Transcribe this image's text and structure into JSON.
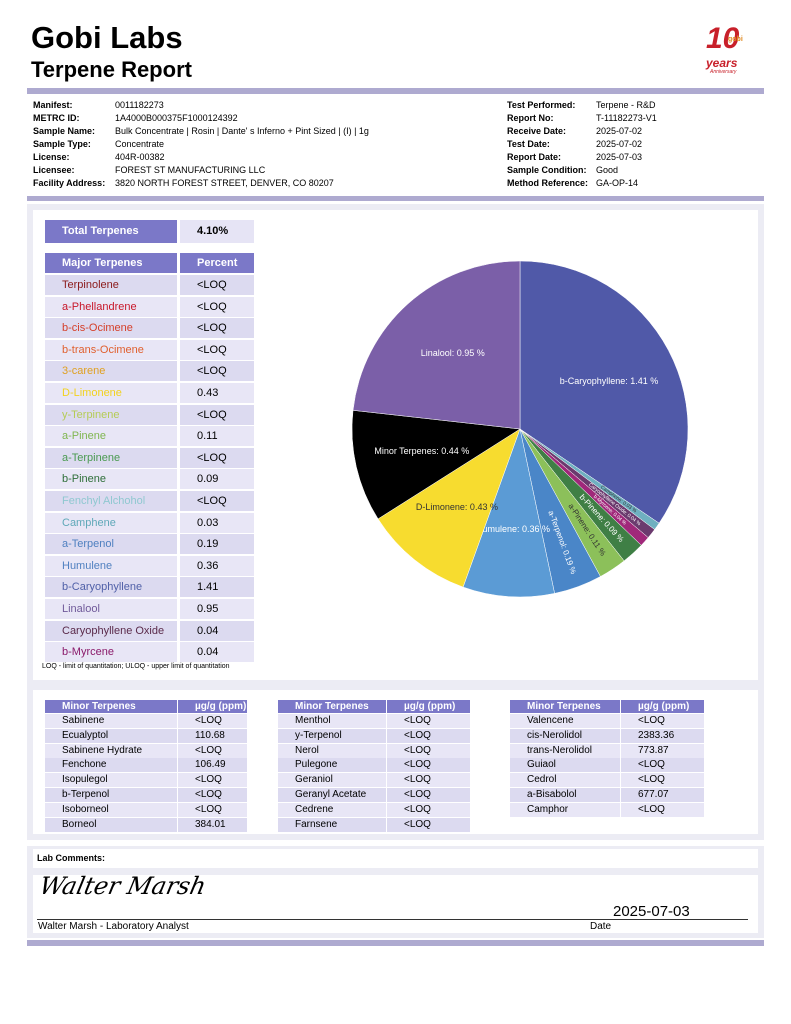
{
  "header": {
    "title": "Gobi Labs",
    "subtitle": "Terpene Report",
    "logo": {
      "number": "10",
      "brand": "gobi",
      "text": "years",
      "subtext": "Anniversary"
    }
  },
  "sample_info": {
    "left": [
      {
        "label": "Manifest:",
        "value": "0011182273"
      },
      {
        "label": "METRC ID:",
        "value": "1A4000B000375F1000124392"
      },
      {
        "label": "Sample Name:",
        "value": "Bulk Concentrate | Rosin | Dante' s Inferno + Pint Sized | (I) | 1g"
      },
      {
        "label": "Sample Type:",
        "value": "Concentrate"
      },
      {
        "label": "License:",
        "value": "404R-00382"
      },
      {
        "label": "Licensee:",
        "value": "FOREST ST MANUFACTURING LLC"
      },
      {
        "label": "Facility Address:",
        "value": "3820 NORTH FOREST STREET, DENVER, CO 80207"
      }
    ],
    "right": [
      {
        "label": "Test Performed:",
        "value": "Terpene - R&D"
      },
      {
        "label": "Report No:",
        "value": "T-11182273-V1"
      },
      {
        "label": "Receive Date:",
        "value": "2025-07-02"
      },
      {
        "label": "Test Date:",
        "value": "2025-07-02"
      },
      {
        "label": "Report Date:",
        "value": "2025-07-03"
      },
      {
        "label": "Sample Condition:",
        "value": "Good"
      },
      {
        "label": "Method Reference:",
        "value": "GA-OP-14"
      }
    ]
  },
  "total": {
    "label": "Total Terpenes",
    "value": "4.10%"
  },
  "major_terpenes": {
    "columns": [
      "Major Terpenes",
      "Percent"
    ],
    "rows": [
      {
        "name": "Terpinolene",
        "value": "<LOQ",
        "color": "#8b1a1a"
      },
      {
        "name": "a-Phellandrene",
        "value": "<LOQ",
        "color": "#c8172a"
      },
      {
        "name": "b-cis-Ocimene",
        "value": "<LOQ",
        "color": "#d5402a"
      },
      {
        "name": "b-trans-Ocimene",
        "value": "<LOQ",
        "color": "#e0602f"
      },
      {
        "name": "3-carene",
        "value": "<LOQ",
        "color": "#e0a020"
      },
      {
        "name": "D-Limonene",
        "value": "0.43",
        "color": "#f2d21e"
      },
      {
        "name": "y-Terpinene",
        "value": "<LOQ",
        "color": "#b5cc55"
      },
      {
        "name": "a-Pinene",
        "value": "0.11",
        "color": "#7fb64f"
      },
      {
        "name": "a-Terpinene",
        "value": "<LOQ",
        "color": "#4a9a50"
      },
      {
        "name": "b-Pinene",
        "value": "0.09",
        "color": "#2f6f3a"
      },
      {
        "name": "Fenchyl Alchohol",
        "value": "<LOQ",
        "color": "#8fc8d0"
      },
      {
        "name": "Camphene",
        "value": "0.03",
        "color": "#5fa8b8"
      },
      {
        "name": "a-Terpenol",
        "value": "0.19",
        "color": "#4f80c0"
      },
      {
        "name": "Humulene",
        "value": "0.36",
        "color": "#5080c0"
      },
      {
        "name": "b-Caryophyllene",
        "value": "1.41",
        "color": "#5060a8"
      },
      {
        "name": "Linalool",
        "value": "0.95",
        "color": "#705a9a"
      },
      {
        "name": "Caryophyllene Oxide",
        "value": "0.04",
        "color": "#5a2a4a"
      },
      {
        "name": "b-Myrcene",
        "value": "0.04",
        "color": "#8a1a6a"
      }
    ]
  },
  "chart_data": {
    "type": "pie",
    "labels": [
      "b-Caryophyllene: 1.41 %",
      "Camphene: 0.03 %",
      "Caryophyllene Oxide: 0.04 %",
      "b-Myrcene: 0.04 %",
      "b-Pinene: 0.09 %",
      "a-Pinene: 0.11 %",
      "a-Terpenol: 0.19 %",
      "Humulene: 0.36 %",
      "D-Limonene: 0.43 %",
      "Minor Terpenes: 0.44 %",
      "Linalool: 0.95 %"
    ],
    "values": [
      1.41,
      0.03,
      0.04,
      0.04,
      0.09,
      0.11,
      0.19,
      0.36,
      0.43,
      0.44,
      0.95
    ],
    "colors": [
      "#5059a8",
      "#6fb0c0",
      "#6b3a6e",
      "#a0287a",
      "#3f7f45",
      "#8cc05a",
      "#4a86c8",
      "#5b9bd5",
      "#f7dc2f",
      "#000000",
      "#7b5fa8"
    ]
  },
  "note": "LOQ - limit of quantitation; ULOQ - upper limit of quantitation",
  "minor_terpenes": [
    {
      "columns": [
        "Minor Terpenes",
        "µg/g (ppm)"
      ],
      "rows": [
        [
          "Sabinene",
          "<LOQ"
        ],
        [
          "Ecualyptol",
          "110.68"
        ],
        [
          "Sabinene Hydrate",
          "<LOQ"
        ],
        [
          "Fenchone",
          "106.49"
        ],
        [
          "Isopulegol",
          "<LOQ"
        ],
        [
          "b-Terpenol",
          "<LOQ"
        ],
        [
          "Isoborneol",
          "<LOQ"
        ],
        [
          "Borneol",
          "384.01"
        ]
      ]
    },
    {
      "columns": [
        "Minor Terpenes",
        "µg/g (ppm)"
      ],
      "rows": [
        [
          "Menthol",
          "<LOQ"
        ],
        [
          "y-Terpenol",
          "<LOQ"
        ],
        [
          "Nerol",
          "<LOQ"
        ],
        [
          "Pulegone",
          "<LOQ"
        ],
        [
          "Geraniol",
          "<LOQ"
        ],
        [
          "Geranyl Acetate",
          "<LOQ"
        ],
        [
          "Cedrene",
          "<LOQ"
        ],
        [
          "Farnsene",
          "<LOQ"
        ]
      ]
    },
    {
      "columns": [
        "Minor Terpenes",
        "µg/g (ppm)"
      ],
      "rows": [
        [
          "Valencene",
          "<LOQ"
        ],
        [
          "cis-Nerolidol",
          "2383.36"
        ],
        [
          "trans-Nerolidol",
          "773.87"
        ],
        [
          "Guiaol",
          "<LOQ"
        ],
        [
          "Cedrol",
          "<LOQ"
        ],
        [
          "a-Bisabolol",
          "677.07"
        ],
        [
          "Camphor",
          "<LOQ"
        ]
      ]
    }
  ],
  "lab_comments": {
    "label": "Lab Comments:"
  },
  "signature": {
    "signature": "Walter Marsh",
    "date": "2025-07-03",
    "analyst": "Walter Marsh - Laboratory Analyst",
    "date_label": "Date"
  }
}
